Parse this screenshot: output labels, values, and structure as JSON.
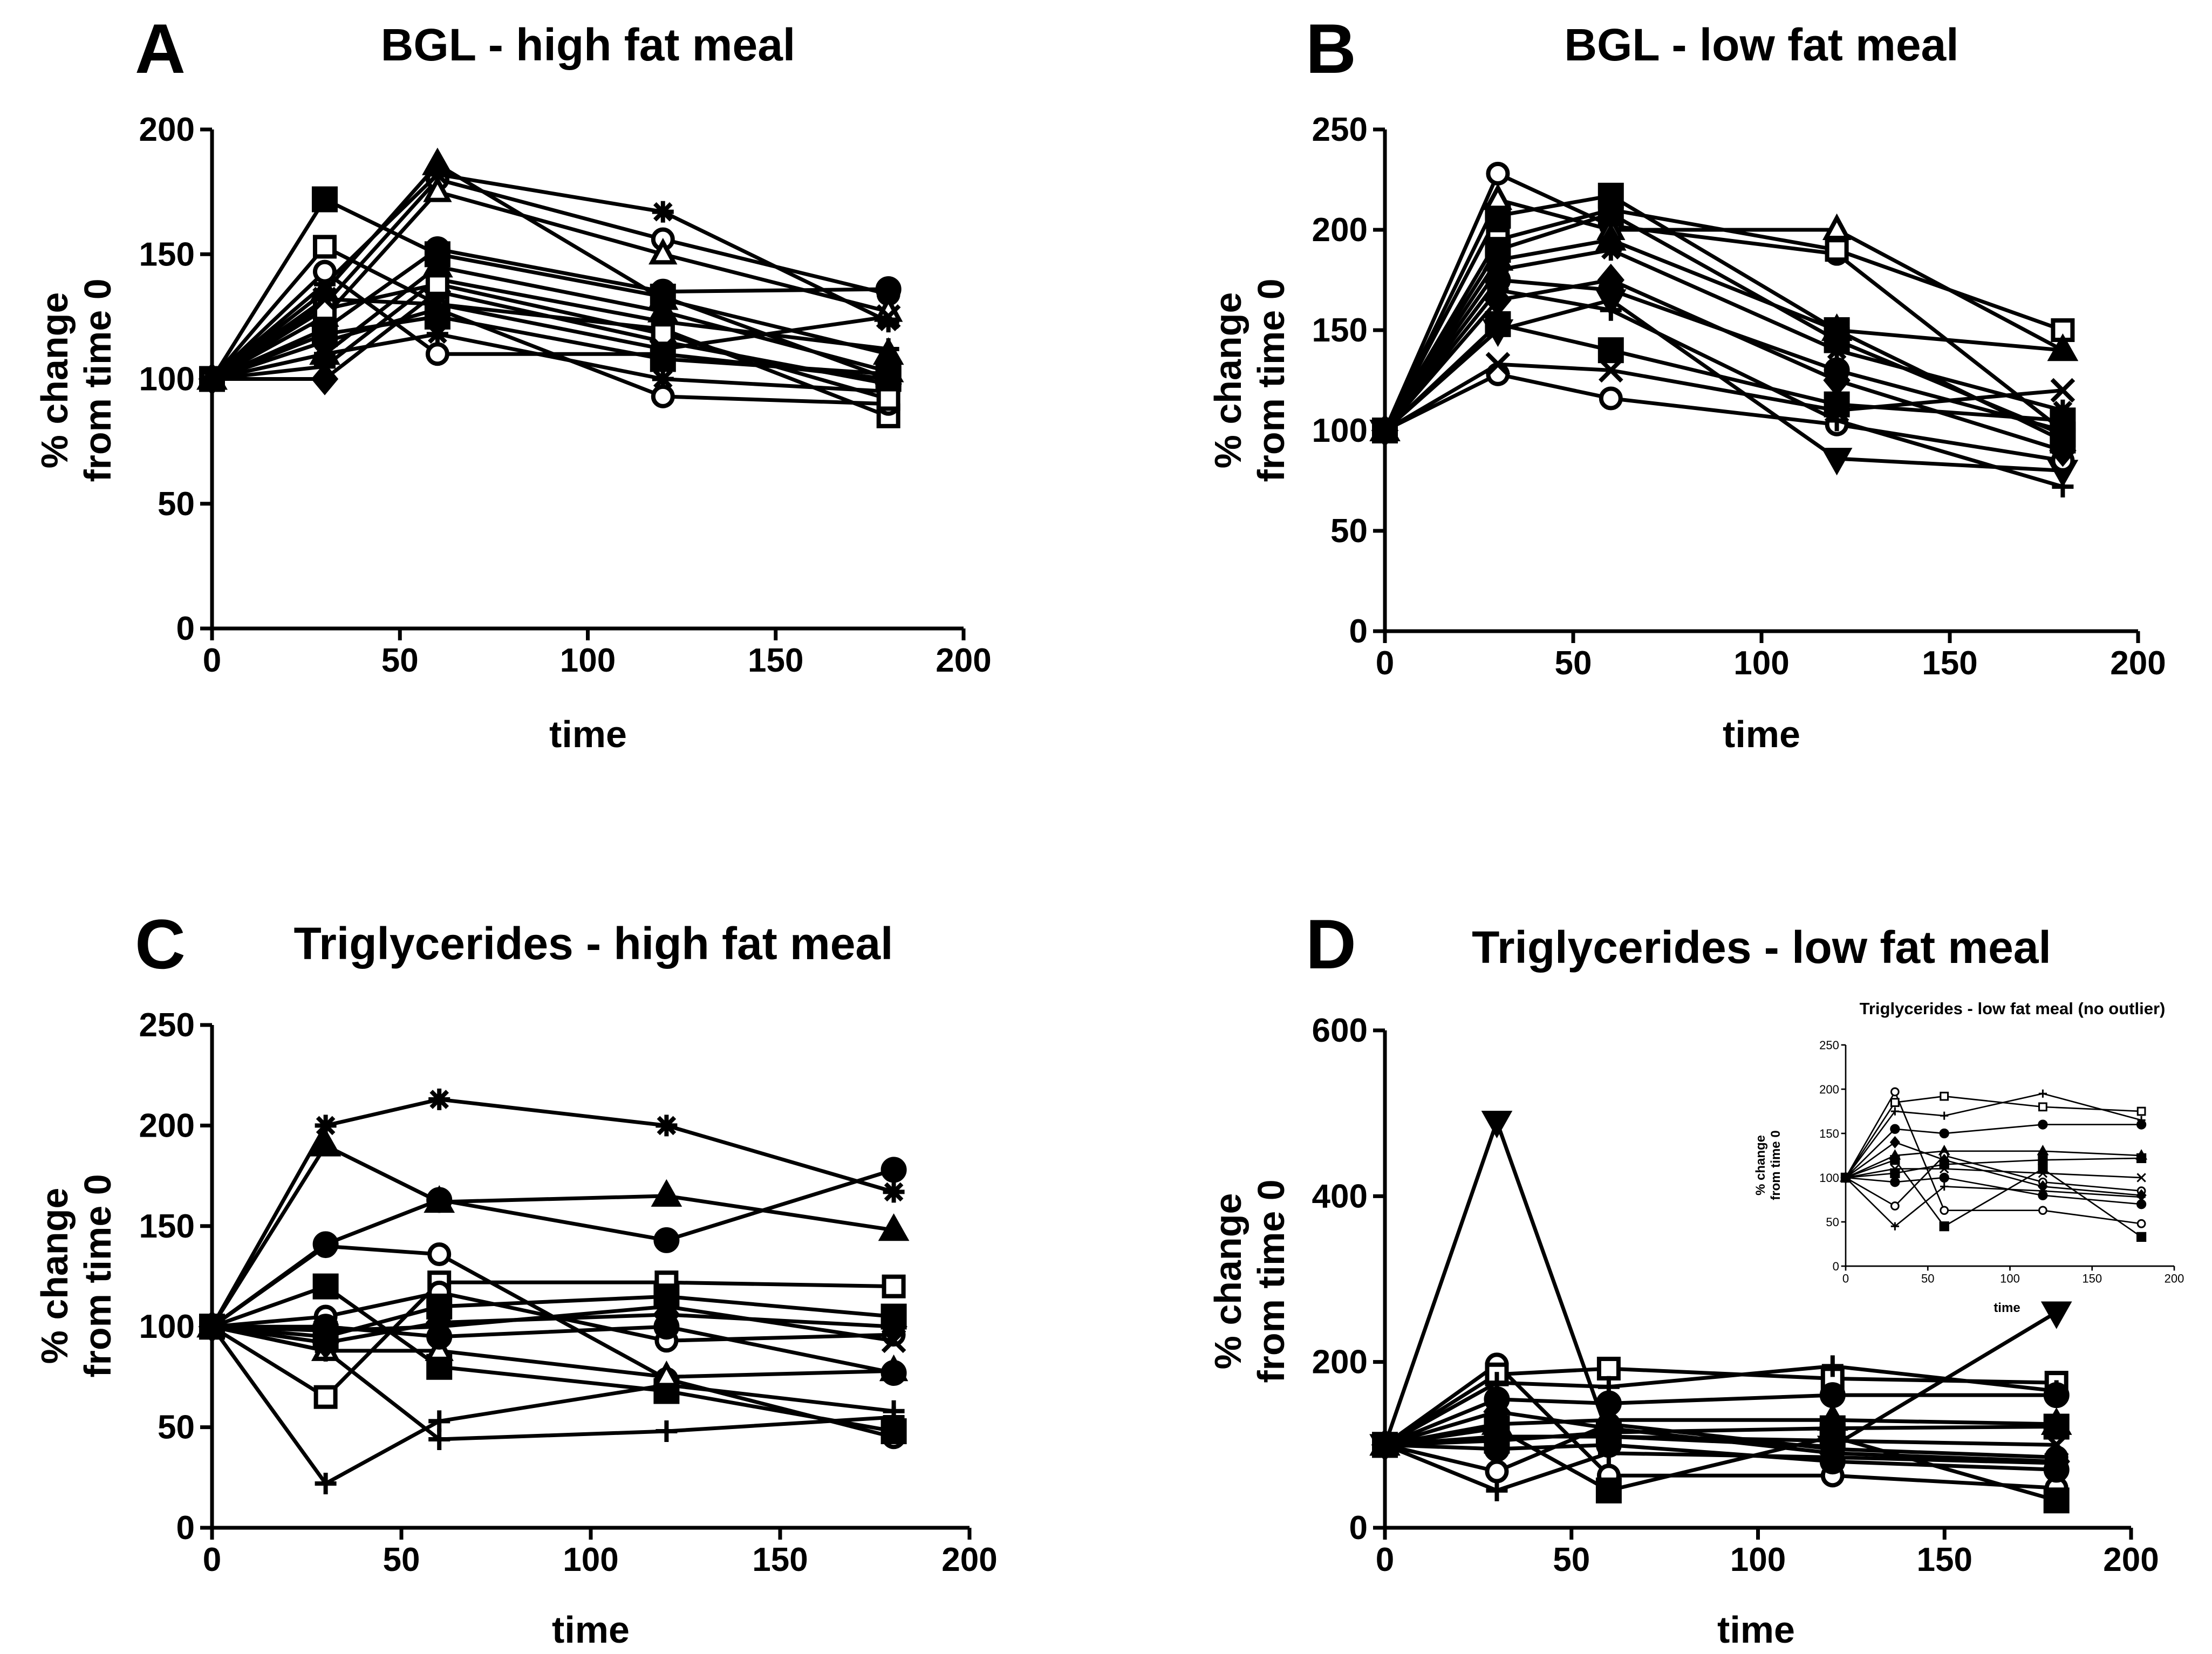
{
  "chart_data": [
    {
      "type": "line",
      "panel": "A",
      "title": "BGL - high fat meal",
      "xlabel": "time",
      "ylabel": [
        "% change",
        "from time 0"
      ],
      "xlim": [
        0,
        200
      ],
      "ylim": [
        0,
        200
      ],
      "xticks": [
        0,
        50,
        100,
        150,
        200
      ],
      "yticks": [
        0,
        50,
        100,
        150,
        200
      ],
      "x": [
        0,
        30,
        60,
        120,
        180
      ],
      "series": [
        {
          "name": "s1",
          "marker": "square",
          "values": [
            100,
            172,
            150,
            133,
            100
          ]
        },
        {
          "name": "s2",
          "marker": "triangle",
          "values": [
            100,
            135,
            186,
            132,
            110
          ]
        },
        {
          "name": "s3",
          "marker": "circle-open",
          "values": [
            100,
            130,
            180,
            156,
            134
          ]
        },
        {
          "name": "s4",
          "marker": "asterisk",
          "values": [
            100,
            138,
            182,
            167,
            123
          ]
        },
        {
          "name": "s5",
          "marker": "triangle-open",
          "values": [
            100,
            125,
            175,
            150,
            127
          ]
        },
        {
          "name": "s6",
          "marker": "square-open",
          "values": [
            100,
            153,
            130,
            120,
            85
          ]
        },
        {
          "name": "s7",
          "marker": "circle",
          "values": [
            100,
            120,
            152,
            135,
            136
          ]
        },
        {
          "name": "s8",
          "marker": "circle-open",
          "values": [
            100,
            143,
            110,
            110,
            100
          ]
        },
        {
          "name": "s9",
          "marker": "diamond",
          "values": [
            100,
            100,
            135,
            115,
            98
          ]
        },
        {
          "name": "s10",
          "marker": "cross",
          "values": [
            100,
            110,
            118,
            100,
            95
          ]
        },
        {
          "name": "s11",
          "marker": "circle-open",
          "values": [
            100,
            115,
            128,
            93,
            90
          ]
        },
        {
          "name": "s12",
          "marker": "plus",
          "values": [
            100,
            105,
            140,
            123,
            112
          ]
        },
        {
          "name": "s13",
          "marker": "square",
          "values": [
            100,
            118,
            125,
            108,
            102
          ]
        },
        {
          "name": "s14",
          "marker": "square-open",
          "values": [
            100,
            128,
            138,
            118,
            92
          ]
        },
        {
          "name": "s15",
          "marker": "triangle",
          "values": [
            100,
            110,
            145,
            127,
            103
          ]
        },
        {
          "name": "s16",
          "marker": "x",
          "values": [
            100,
            132,
            130,
            112,
            125
          ]
        }
      ]
    },
    {
      "type": "line",
      "panel": "B",
      "title": "BGL - low fat meal",
      "xlabel": "time",
      "ylabel": [
        "% change",
        "from time 0"
      ],
      "xlim": [
        0,
        200
      ],
      "ylim": [
        0,
        250
      ],
      "xticks": [
        0,
        50,
        100,
        150,
        200
      ],
      "yticks": [
        0,
        50,
        100,
        150,
        200,
        250
      ],
      "x": [
        0,
        30,
        60,
        120,
        180
      ],
      "series": [
        {
          "name": "s1",
          "marker": "circle-open",
          "values": [
            100,
            228,
            202,
            188,
            100
          ]
        },
        {
          "name": "s2",
          "marker": "square",
          "values": [
            100,
            207,
            217,
            150,
            95
          ]
        },
        {
          "name": "s3",
          "marker": "triangle-open",
          "values": [
            100,
            215,
            200,
            200,
            140
          ]
        },
        {
          "name": "s4",
          "marker": "square-open",
          "values": [
            100,
            195,
            210,
            190,
            150
          ]
        },
        {
          "name": "s5",
          "marker": "triangle",
          "values": [
            100,
            185,
            195,
            150,
            140
          ]
        },
        {
          "name": "s6",
          "marker": "circle",
          "values": [
            100,
            175,
            170,
            130,
            100
          ]
        },
        {
          "name": "s7",
          "marker": "triangle-down",
          "values": [
            100,
            150,
            165,
            86,
            80
          ]
        },
        {
          "name": "s8",
          "marker": "circle-open",
          "values": [
            100,
            128,
            116,
            103,
            85
          ]
        },
        {
          "name": "s9",
          "marker": "x",
          "values": [
            100,
            133,
            130,
            110,
            120
          ]
        },
        {
          "name": "s10",
          "marker": "square",
          "values": [
            100,
            153,
            140,
            113,
            105
          ]
        },
        {
          "name": "s11",
          "marker": "plus",
          "values": [
            100,
            170,
            160,
            105,
            72
          ]
        },
        {
          "name": "s12",
          "marker": "asterisk",
          "values": [
            100,
            180,
            190,
            140,
            110
          ]
        },
        {
          "name": "s13",
          "marker": "diamond",
          "values": [
            100,
            165,
            175,
            125,
            90
          ]
        },
        {
          "name": "s14",
          "marker": "square",
          "values": [
            100,
            190,
            208,
            145,
            98
          ]
        }
      ]
    },
    {
      "type": "line",
      "panel": "C",
      "title": "Triglycerides - high fat meal",
      "xlabel": "time",
      "ylabel": [
        "% change",
        "from time 0"
      ],
      "xlim": [
        0,
        200
      ],
      "ylim": [
        0,
        250
      ],
      "xticks": [
        0,
        50,
        100,
        150,
        200
      ],
      "yticks": [
        0,
        50,
        100,
        150,
        200,
        250
      ],
      "x": [
        0,
        30,
        60,
        120,
        180
      ],
      "series": [
        {
          "name": "s1",
          "marker": "asterisk",
          "values": [
            100,
            200,
            213,
            200,
            167
          ]
        },
        {
          "name": "s2",
          "marker": "triangle",
          "values": [
            100,
            190,
            162,
            165,
            148
          ]
        },
        {
          "name": "s3",
          "marker": "circle-open",
          "values": [
            100,
            140,
            136,
            74,
            45
          ]
        },
        {
          "name": "s4",
          "marker": "circle",
          "values": [
            100,
            141,
            163,
            143,
            178
          ]
        },
        {
          "name": "s5",
          "marker": "plus",
          "values": [
            100,
            22,
            53,
            71,
            58
          ]
        },
        {
          "name": "s6",
          "marker": "plus",
          "values": [
            100,
            88,
            44,
            48,
            55
          ]
        },
        {
          "name": "s7",
          "marker": "square-open",
          "values": [
            100,
            65,
            122,
            122,
            120
          ]
        },
        {
          "name": "s8",
          "marker": "square",
          "values": [
            100,
            120,
            80,
            68,
            48
          ]
        },
        {
          "name": "s9",
          "marker": "triangle-open",
          "values": [
            100,
            88,
            88,
            75,
            78
          ]
        },
        {
          "name": "s10",
          "marker": "circle-open",
          "values": [
            100,
            105,
            117,
            93,
            96
          ]
        },
        {
          "name": "s11",
          "marker": "square",
          "values": [
            100,
            95,
            110,
            115,
            105
          ]
        },
        {
          "name": "s12",
          "marker": "diamond",
          "values": [
            100,
            92,
            102,
            106,
            100
          ]
        },
        {
          "name": "s13",
          "marker": "circle",
          "values": [
            100,
            100,
            95,
            100,
            77
          ]
        },
        {
          "name": "s14",
          "marker": "x",
          "values": [
            100,
            98,
            100,
            110,
            93
          ]
        }
      ]
    },
    {
      "type": "line",
      "panel": "D",
      "title": "Triglycerides - low fat meal",
      "xlabel": "time",
      "ylabel": [
        "% change",
        "from time 0"
      ],
      "xlim": [
        0,
        200
      ],
      "ylim": [
        0,
        600
      ],
      "xticks": [
        0,
        50,
        100,
        150,
        200
      ],
      "yticks": [
        0,
        200,
        400,
        600
      ],
      "x": [
        0,
        30,
        60,
        120,
        180
      ],
      "series": [
        {
          "name": "outlier",
          "marker": "triangle-down",
          "values": [
            100,
            490,
            110,
            98,
            260
          ]
        },
        {
          "name": "s1",
          "marker": "circle-open",
          "values": [
            100,
            197,
            63,
            63,
            48
          ]
        },
        {
          "name": "s2",
          "marker": "square-open",
          "values": [
            100,
            185,
            192,
            180,
            175
          ]
        },
        {
          "name": "s3",
          "marker": "plus",
          "values": [
            100,
            175,
            170,
            195,
            165
          ]
        },
        {
          "name": "s4",
          "marker": "circle",
          "values": [
            100,
            155,
            150,
            160,
            160
          ]
        },
        {
          "name": "s5",
          "marker": "triangle",
          "values": [
            100,
            125,
            130,
            130,
            125
          ]
        },
        {
          "name": "s6",
          "marker": "square",
          "values": [
            100,
            120,
            45,
            110,
            33
          ]
        },
        {
          "name": "s7",
          "marker": "x",
          "values": [
            100,
            110,
            110,
            105,
            100
          ]
        },
        {
          "name": "s8",
          "marker": "plus",
          "values": [
            100,
            45,
            90,
            85,
            78
          ]
        },
        {
          "name": "s9",
          "marker": "circle",
          "values": [
            100,
            95,
            100,
            80,
            70
          ]
        },
        {
          "name": "s10",
          "marker": "square",
          "values": [
            100,
            105,
            115,
            120,
            122
          ]
        },
        {
          "name": "s11",
          "marker": "circle-open",
          "values": [
            100,
            68,
            125,
            95,
            85
          ]
        },
        {
          "name": "s12",
          "marker": "diamond",
          "values": [
            100,
            140,
            120,
            90,
            80
          ]
        }
      ]
    },
    {
      "type": "line",
      "panel": "D-inset",
      "title": "Triglycerides - low fat meal (no outlier)",
      "xlabel": "time",
      "ylabel": [
        "% change",
        "from time 0"
      ],
      "xlim": [
        0,
        200
      ],
      "ylim": [
        0,
        250
      ],
      "xticks": [
        0,
        50,
        100,
        150,
        200
      ],
      "yticks": [
        0,
        50,
        100,
        150,
        200,
        250
      ],
      "x": [
        0,
        30,
        60,
        120,
        180
      ],
      "series": [
        {
          "name": "s1",
          "marker": "circle-open",
          "values": [
            100,
            197,
            63,
            63,
            48
          ]
        },
        {
          "name": "s2",
          "marker": "square-open",
          "values": [
            100,
            185,
            192,
            180,
            175
          ]
        },
        {
          "name": "s3",
          "marker": "plus",
          "values": [
            100,
            175,
            170,
            195,
            165
          ]
        },
        {
          "name": "s4",
          "marker": "circle",
          "values": [
            100,
            155,
            150,
            160,
            160
          ]
        },
        {
          "name": "s5",
          "marker": "triangle",
          "values": [
            100,
            125,
            130,
            130,
            125
          ]
        },
        {
          "name": "s6",
          "marker": "square",
          "values": [
            100,
            120,
            45,
            110,
            33
          ]
        },
        {
          "name": "s7",
          "marker": "x",
          "values": [
            100,
            110,
            110,
            105,
            100
          ]
        },
        {
          "name": "s8",
          "marker": "plus",
          "values": [
            100,
            45,
            90,
            85,
            78
          ]
        },
        {
          "name": "s9",
          "marker": "circle",
          "values": [
            100,
            95,
            100,
            80,
            70
          ]
        },
        {
          "name": "s10",
          "marker": "square",
          "values": [
            100,
            105,
            115,
            120,
            122
          ]
        },
        {
          "name": "s11",
          "marker": "circle-open",
          "values": [
            100,
            68,
            125,
            95,
            85
          ]
        },
        {
          "name": "s12",
          "marker": "diamond",
          "values": [
            100,
            140,
            120,
            90,
            80
          ]
        }
      ]
    }
  ]
}
